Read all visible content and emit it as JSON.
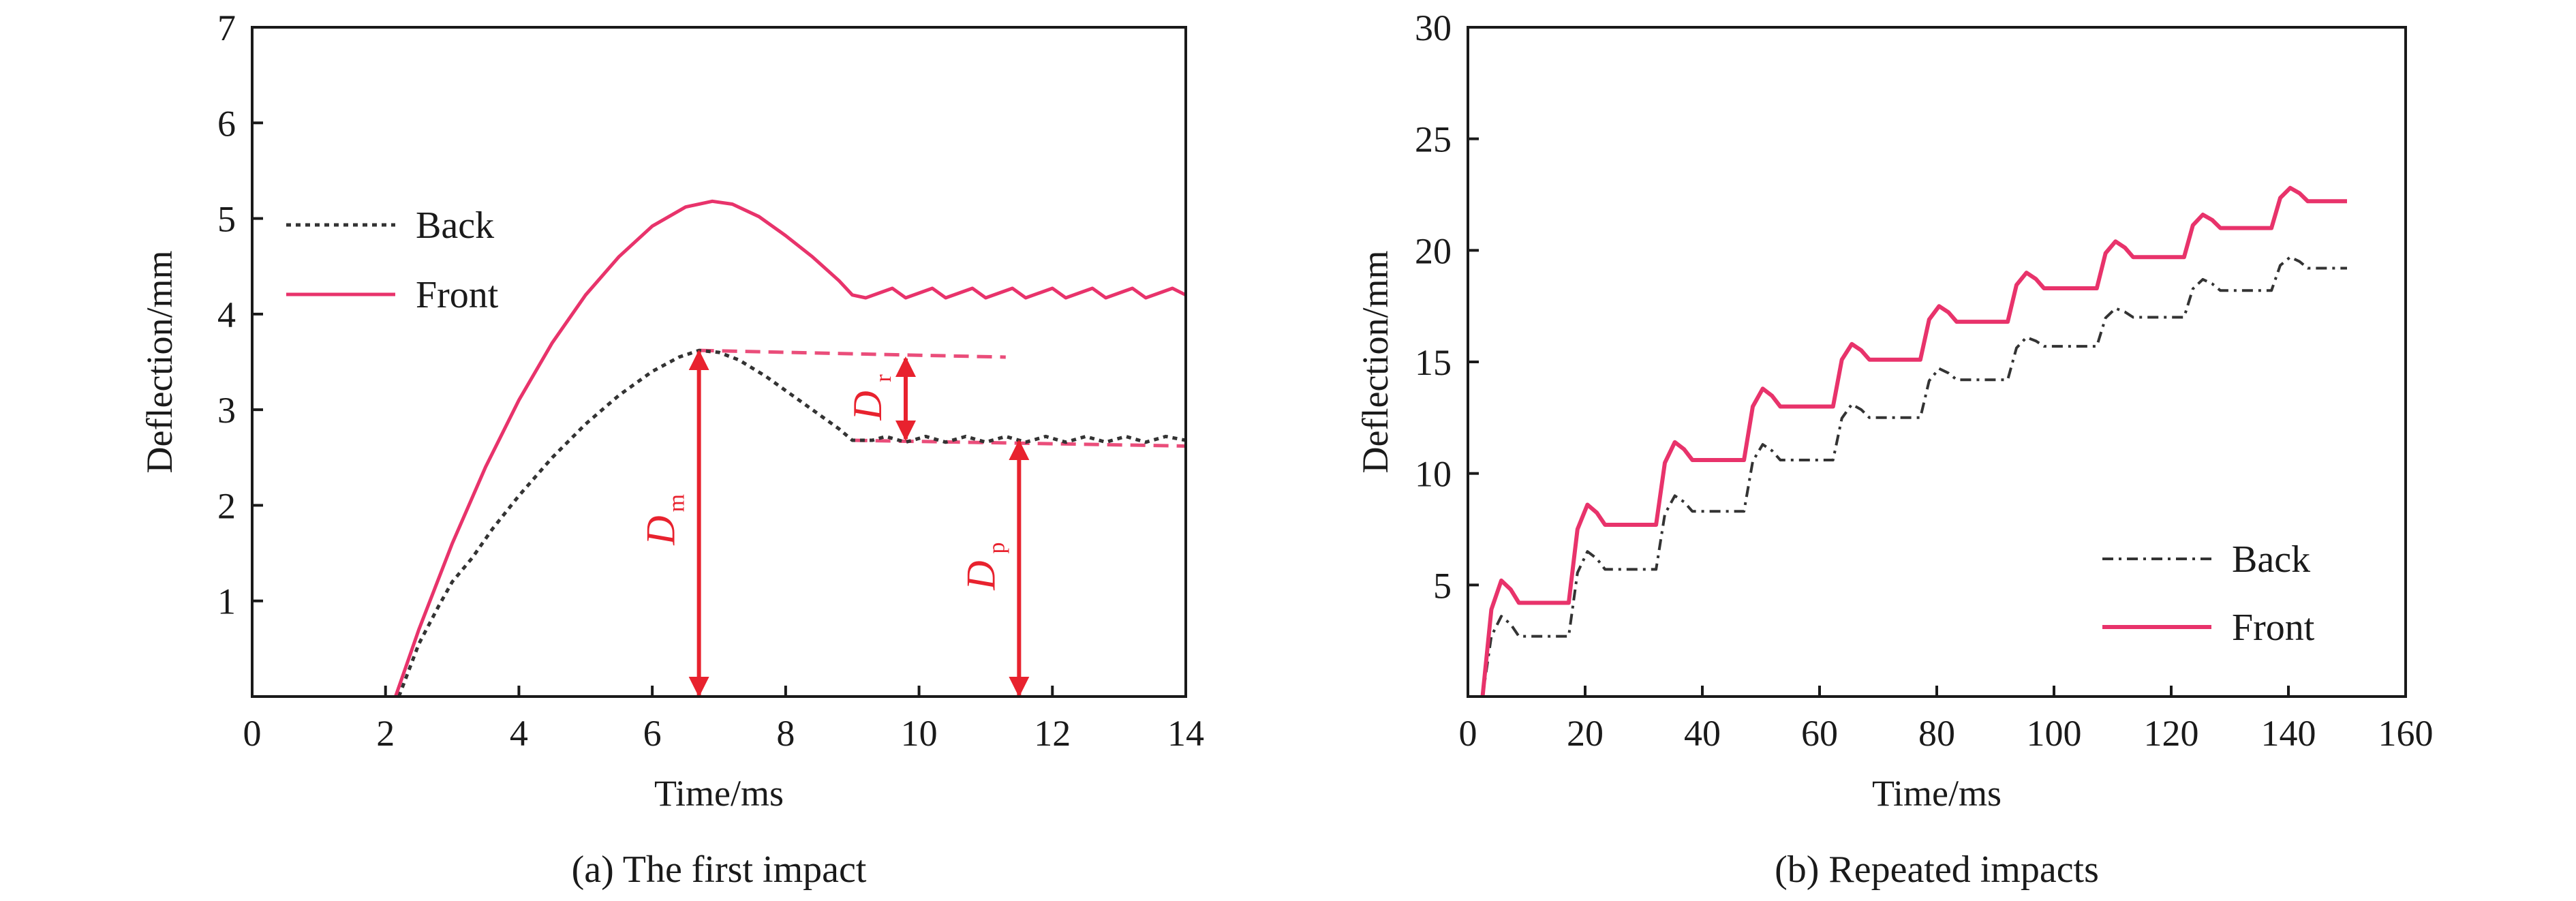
{
  "colors": {
    "back": "#333333",
    "front": "#e8336b",
    "annotation": "#e8222e",
    "dashed_reference": "#ea4d7a",
    "axis": "#1a1a1a"
  },
  "chart_data": [
    {
      "type": "line",
      "caption": "(a) The first impact",
      "xlabel": "Time/ms",
      "ylabel": "Deflection/mm",
      "xlim": [
        0,
        14
      ],
      "ylim": [
        0,
        7
      ],
      "xticks": [
        "0",
        "2",
        "4",
        "6",
        "8",
        "10",
        "12",
        "14"
      ],
      "yticks": [
        "1",
        "2",
        "3",
        "4",
        "5",
        "6",
        "7"
      ],
      "legend_position": "upper-left",
      "series": [
        {
          "name": "Back",
          "style": "dotted",
          "points": [
            [
              2.2,
              0
            ],
            [
              2.5,
              0.55
            ],
            [
              2.8,
              0.95
            ],
            [
              3.0,
              1.2
            ],
            [
              3.3,
              1.45
            ],
            [
              3.6,
              1.75
            ],
            [
              4.0,
              2.1
            ],
            [
              4.5,
              2.5
            ],
            [
              5.0,
              2.85
            ],
            [
              5.5,
              3.15
            ],
            [
              6.0,
              3.4
            ],
            [
              6.4,
              3.55
            ],
            [
              6.7,
              3.62
            ],
            [
              7.0,
              3.6
            ],
            [
              7.3,
              3.52
            ],
            [
              7.7,
              3.35
            ],
            [
              8.0,
              3.2
            ],
            [
              8.4,
              3.0
            ],
            [
              8.8,
              2.8
            ],
            [
              9.0,
              2.68
            ],
            [
              9.3,
              2.68
            ],
            [
              9.5,
              2.72
            ],
            [
              9.8,
              2.66
            ],
            [
              10.1,
              2.72
            ],
            [
              10.4,
              2.66
            ],
            [
              10.7,
              2.72
            ],
            [
              11.0,
              2.66
            ],
            [
              11.3,
              2.72
            ],
            [
              11.6,
              2.66
            ],
            [
              11.9,
              2.72
            ],
            [
              12.2,
              2.66
            ],
            [
              12.5,
              2.72
            ],
            [
              12.8,
              2.66
            ],
            [
              13.1,
              2.72
            ],
            [
              13.4,
              2.66
            ],
            [
              13.7,
              2.72
            ],
            [
              14.0,
              2.68
            ]
          ]
        },
        {
          "name": "Front",
          "style": "solid",
          "points": [
            [
              2.15,
              0
            ],
            [
              2.5,
              0.7
            ],
            [
              3.0,
              1.6
            ],
            [
              3.5,
              2.4
            ],
            [
              4.0,
              3.1
            ],
            [
              4.5,
              3.7
            ],
            [
              5.0,
              4.2
            ],
            [
              5.5,
              4.6
            ],
            [
              6.0,
              4.92
            ],
            [
              6.5,
              5.12
            ],
            [
              6.9,
              5.18
            ],
            [
              7.2,
              5.15
            ],
            [
              7.6,
              5.02
            ],
            [
              8.0,
              4.82
            ],
            [
              8.4,
              4.6
            ],
            [
              8.8,
              4.35
            ],
            [
              9.0,
              4.2
            ],
            [
              9.2,
              4.17
            ],
            [
              9.4,
              4.22
            ],
            [
              9.6,
              4.27
            ],
            [
              9.8,
              4.17
            ],
            [
              10.0,
              4.22
            ],
            [
              10.2,
              4.27
            ],
            [
              10.4,
              4.17
            ],
            [
              10.6,
              4.22
            ],
            [
              10.8,
              4.27
            ],
            [
              11.0,
              4.17
            ],
            [
              11.2,
              4.22
            ],
            [
              11.4,
              4.27
            ],
            [
              11.6,
              4.17
            ],
            [
              11.8,
              4.22
            ],
            [
              12.0,
              4.27
            ],
            [
              12.2,
              4.17
            ],
            [
              12.4,
              4.22
            ],
            [
              12.6,
              4.27
            ],
            [
              12.8,
              4.17
            ],
            [
              13.0,
              4.22
            ],
            [
              13.2,
              4.27
            ],
            [
              13.4,
              4.17
            ],
            [
              13.6,
              4.22
            ],
            [
              13.8,
              4.27
            ],
            [
              14.0,
              4.2
            ]
          ]
        }
      ],
      "annotations": [
        {
          "label": "D",
          "sub": "m",
          "x": 6.7,
          "from": 0,
          "to": 3.62
        },
        {
          "label": "D",
          "sub": "r",
          "x": 9.8,
          "from": 2.68,
          "to": 3.55
        },
        {
          "label": "D",
          "sub": "p",
          "x": 11.5,
          "from": 0,
          "to": 2.68
        }
      ],
      "reference_lines": [
        {
          "x": [
            6.7,
            11.3
          ],
          "y": [
            3.62,
            3.55
          ]
        },
        {
          "x": [
            9.0,
            14.0
          ],
          "y": [
            2.68,
            2.62
          ]
        }
      ]
    },
    {
      "type": "line",
      "caption": "(b) Repeated impacts",
      "xlabel": "Time/ms",
      "ylabel": "Deflection/mm",
      "xlim": [
        0,
        160
      ],
      "ylim": [
        0,
        30
      ],
      "xticks": [
        "0",
        "20",
        "40",
        "60",
        "80",
        "100",
        "120",
        "140",
        "160"
      ],
      "yticks": [
        "5",
        "10",
        "15",
        "20",
        "25",
        "30"
      ],
      "legend_position": "lower-right",
      "impact_times": [
        2.5,
        17.2,
        32.1,
        47.1,
        62.3,
        77.2,
        92.1,
        107.3,
        122.2,
        137.1
      ],
      "series": [
        {
          "name": "Back",
          "style": "dash-dot",
          "plateaus": [
            2.7,
            5.7,
            8.3,
            10.6,
            12.5,
            14.2,
            15.7,
            17.0,
            18.2,
            19.2
          ],
          "peaks": [
            3.6,
            6.5,
            9.0,
            11.3,
            13.1,
            14.7,
            16.1,
            17.4,
            18.7,
            19.7
          ],
          "end_time": 150
        },
        {
          "name": "Front",
          "style": "solid",
          "plateaus": [
            4.2,
            7.7,
            10.6,
            13.0,
            15.1,
            16.8,
            18.3,
            19.7,
            21.0,
            22.2
          ],
          "peaks": [
            5.2,
            8.6,
            11.4,
            13.8,
            15.8,
            17.5,
            19.0,
            20.4,
            21.6,
            22.8
          ],
          "end_time": 150
        }
      ]
    }
  ]
}
